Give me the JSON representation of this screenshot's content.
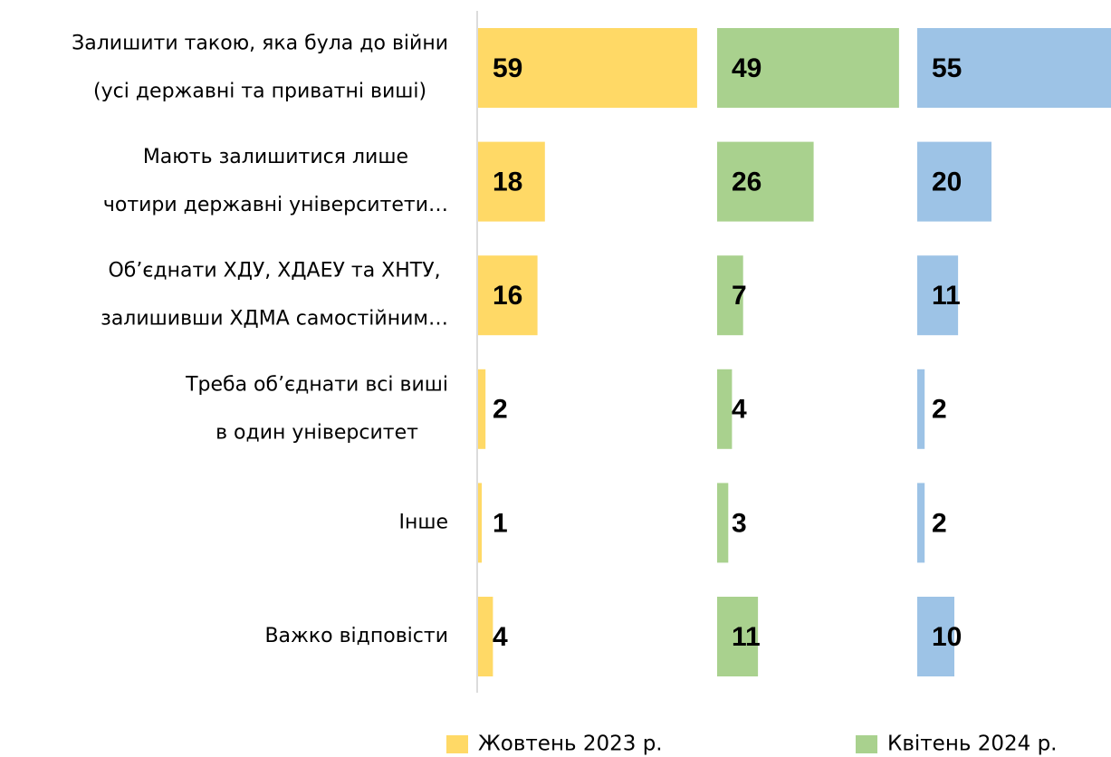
{
  "chart_data": {
    "type": "bar-panels",
    "orientation": "horizontal",
    "categories": [
      [
        "Залишити такою, яка була до війни",
        "(усі державні та приватні виші)"
      ],
      [
        "Мають залишитися лише",
        "чотири державні університети…"
      ],
      [
        "Об’єднати ХДУ, ХДАЕУ та ХНТУ,",
        "залишивши ХДМА самостійним…"
      ],
      [
        "Треба об’єднати всі виші",
        "в один університет"
      ],
      [
        "Інше"
      ],
      [
        "Важко відповісти"
      ]
    ],
    "series": [
      {
        "name": "Жовтень 2023 р.",
        "color": "#FFD966",
        "values": [
          59,
          18,
          16,
          2,
          1,
          4
        ]
      },
      {
        "name": "Квітень 2024 р.",
        "color": "#A9D18E",
        "values": [
          49,
          26,
          7,
          4,
          3,
          11
        ]
      },
      {
        "color": "#9DC3E6",
        "values": [
          55,
          20,
          11,
          2,
          2,
          10
        ]
      }
    ],
    "xlim": [
      0,
      100
    ]
  }
}
